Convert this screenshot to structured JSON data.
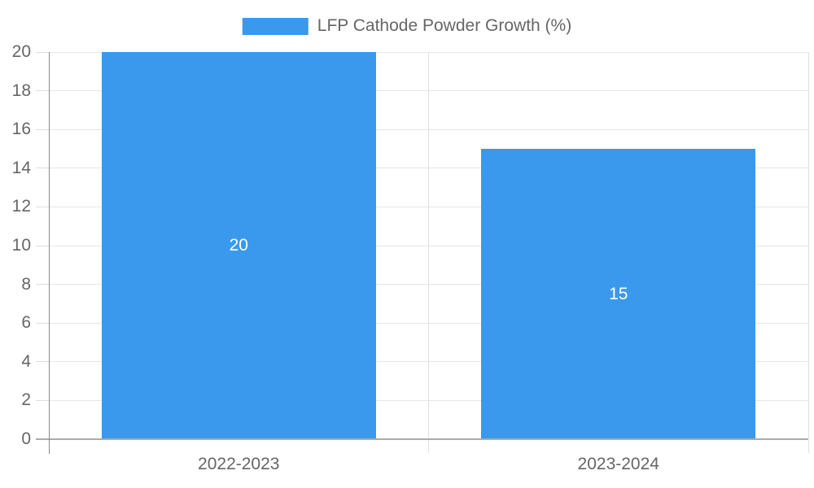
{
  "legend": {
    "label": "LFP Cathode Powder Growth (%)"
  },
  "chart_data": {
    "type": "bar",
    "title": "",
    "xlabel": "",
    "ylabel": "",
    "categories": [
      "2022-2023",
      "2023-2024"
    ],
    "values": [
      20,
      15
    ],
    "data_labels": [
      "20",
      "15"
    ],
    "legend_entries": [
      "LFP Cathode Powder Growth (%)"
    ],
    "ylim": [
      0,
      20
    ],
    "y_ticks": [
      0,
      2,
      4,
      6,
      8,
      10,
      12,
      14,
      16,
      18,
      20
    ],
    "grid": true,
    "legend_position": "top"
  },
  "colors": {
    "bar": "#3A99EC",
    "grid": "#E6E6E6",
    "grid_vertical": "#E0E0E0",
    "tick": "#DEDEDE",
    "axis": "#8A8A8A",
    "baseline": "#ABABAB",
    "tick_label": "#666666",
    "legend_text": "#666666",
    "data_label": "#FFFFFF",
    "background": "#FFFFFF"
  }
}
